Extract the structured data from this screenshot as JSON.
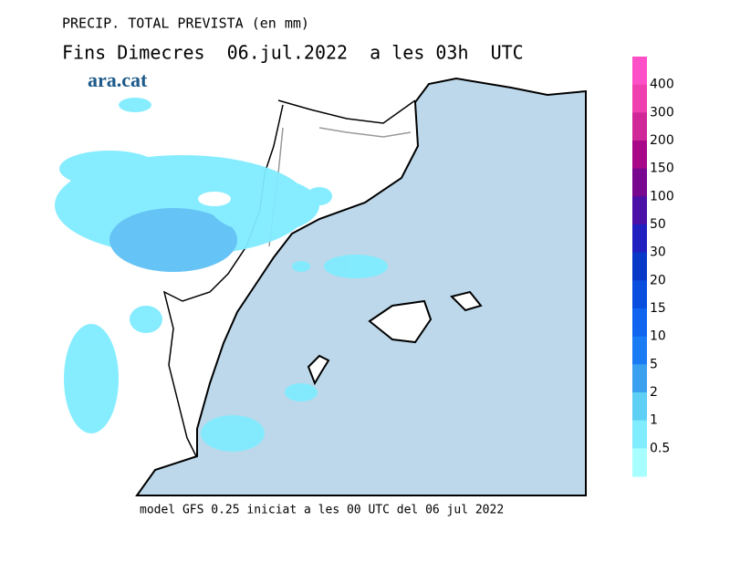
{
  "header": {
    "title": "PRECIP. TOTAL PREVISTA (en mm)",
    "subtitle": "Fins Dimecres  06.jul.2022  a les 03h  UTC",
    "logo": "ara.cat"
  },
  "legend": {
    "labels": [
      "400",
      "300",
      "200",
      "150",
      "100",
      "50",
      "30",
      "20",
      "15",
      "10",
      "5",
      "2",
      "1",
      "0.5"
    ],
    "colors": [
      "#ff50c8",
      "#f040b0",
      "#d02898",
      "#a80888",
      "#780890",
      "#4a10a8",
      "#2020c0",
      "#0838c8",
      "#0a4ee0",
      "#1064f0",
      "#1a7cf5",
      "#3aa0f0",
      "#5ed0f5",
      "#80ecff",
      "#a8ffff"
    ]
  },
  "footer": "model GFS 0.25 iniciat a les 00 UTC del 06 jul 2022"
}
